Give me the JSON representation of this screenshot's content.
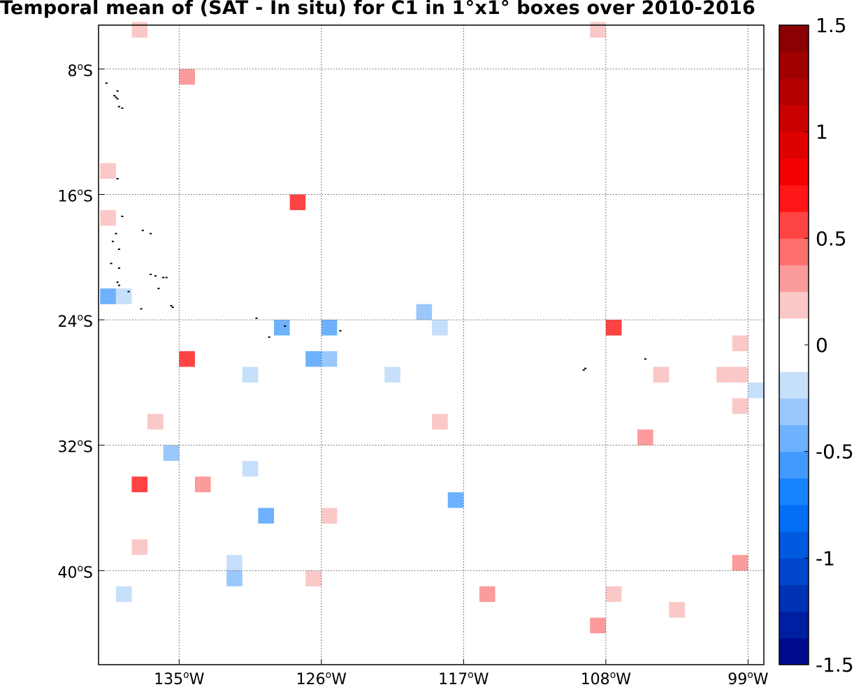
{
  "title": "Temporal mean of (SAT - In situ) for C1 in 1°x1° boxes over 2010-2016",
  "chart_data": {
    "type": "heatmap",
    "title": "Temporal mean of (SAT - In situ) for C1 in 1°x1° boxes over 2010-2016",
    "x_range_lon": [
      -140.1,
      -98.0
    ],
    "y_range_lat": [
      -5.2,
      -46.0
    ],
    "grid": true,
    "x_ticks": [
      {
        "lon": -135,
        "deg": "135",
        "hem": "W"
      },
      {
        "lon": -126,
        "deg": "126",
        "hem": "W"
      },
      {
        "lon": -117,
        "deg": "117",
        "hem": "W"
      },
      {
        "lon": -108,
        "deg": "108",
        "hem": "W"
      },
      {
        "lon": -99,
        "deg": "99",
        "hem": "W"
      }
    ],
    "y_ticks": [
      {
        "lat": -8,
        "deg": "8",
        "hem": "S"
      },
      {
        "lat": -16,
        "deg": "16",
        "hem": "S"
      },
      {
        "lat": -24,
        "deg": "24",
        "hem": "S"
      },
      {
        "lat": -32,
        "deg": "32",
        "hem": "S"
      },
      {
        "lat": -40,
        "deg": "40",
        "hem": "S"
      }
    ],
    "colorbar": {
      "range": [
        -1.5,
        1.5
      ],
      "levels": 24,
      "ticks": [
        "1.5",
        "1",
        "0.5",
        "0",
        "-0.5",
        "-1",
        "-1.5"
      ],
      "tick_values": [
        1.5,
        1,
        0.5,
        0,
        -0.5,
        -1,
        -1.5
      ]
    },
    "cells": [
      {
        "lon": -137.5,
        "lat": -5.5,
        "value": 0.15
      },
      {
        "lon": -108.5,
        "lat": -5.5,
        "value": 0.15
      },
      {
        "lon": -134.5,
        "lat": -8.5,
        "value": 0.3
      },
      {
        "lon": -129.5,
        "lat": -9.5,
        "value": -0.1
      },
      {
        "lon": -129.5,
        "lat": -13.5,
        "value": -0.1
      },
      {
        "lon": -139.5,
        "lat": -14.5,
        "value": 0.15
      },
      {
        "lon": -127.5,
        "lat": -16.5,
        "value": 0.5
      },
      {
        "lon": -129.5,
        "lat": -17.5,
        "value": -0.1
      },
      {
        "lon": -139.5,
        "lat": -17.5,
        "value": 0.15
      },
      {
        "lon": -130.5,
        "lat": -18.5,
        "value": -0.1
      },
      {
        "lon": -139.5,
        "lat": -22.5,
        "value": -0.4
      },
      {
        "lon": -138.5,
        "lat": -22.5,
        "value": -0.25
      },
      {
        "lon": -119.5,
        "lat": -23.5,
        "value": -0.3
      },
      {
        "lon": -128.5,
        "lat": -24.5,
        "value": -0.45
      },
      {
        "lon": -125.5,
        "lat": -24.5,
        "value": -0.45
      },
      {
        "lon": -118.5,
        "lat": -24.5,
        "value": -0.2
      },
      {
        "lon": -107.5,
        "lat": -24.5,
        "value": 0.55
      },
      {
        "lon": -128.5,
        "lat": -25.5,
        "value": -0.1
      },
      {
        "lon": -99.5,
        "lat": -25.5,
        "value": 0.15
      },
      {
        "lon": -134.5,
        "lat": -26.5,
        "value": 0.5
      },
      {
        "lon": -127.5,
        "lat": -26.5,
        "value": -0.1
      },
      {
        "lon": -126.5,
        "lat": -26.5,
        "value": -0.4
      },
      {
        "lon": -125.5,
        "lat": -26.5,
        "value": -0.3
      },
      {
        "lon": -123.5,
        "lat": -26.5,
        "value": -0.1
      },
      {
        "lon": -130.5,
        "lat": -27.5,
        "value": -0.25
      },
      {
        "lon": -126.5,
        "lat": -27.5,
        "value": -0.1
      },
      {
        "lon": -121.5,
        "lat": -27.5,
        "value": -0.15
      },
      {
        "lon": -104.5,
        "lat": -27.5,
        "value": 0.15
      },
      {
        "lon": -100.5,
        "lat": -27.5,
        "value": 0.15
      },
      {
        "lon": -99.5,
        "lat": -27.5,
        "value": 0.15
      },
      {
        "lon": -125.5,
        "lat": -28.5,
        "value": -0.1
      },
      {
        "lon": -122.5,
        "lat": -28.5,
        "value": -0.1
      },
      {
        "lon": -112.5,
        "lat": -28.5,
        "value": -0.1
      },
      {
        "lon": -98.5,
        "lat": -28.5,
        "value": -0.15
      },
      {
        "lon": -99.5,
        "lat": -29.5,
        "value": 0.15
      },
      {
        "lon": -136.5,
        "lat": -30.5,
        "value": 0.15
      },
      {
        "lon": -122.5,
        "lat": -30.5,
        "value": -0.1
      },
      {
        "lon": -118.5,
        "lat": -30.5,
        "value": 0.15
      },
      {
        "lon": -100.5,
        "lat": -30.5,
        "value": -0.1
      },
      {
        "lon": -105.5,
        "lat": -31.5,
        "value": 0.3
      },
      {
        "lon": -135.5,
        "lat": -32.5,
        "value": -0.3
      },
      {
        "lon": -130.5,
        "lat": -33.5,
        "value": -0.25
      },
      {
        "lon": -117.5,
        "lat": -33.5,
        "value": -0.1
      },
      {
        "lon": -137.5,
        "lat": -34.5,
        "value": 0.5
      },
      {
        "lon": -133.5,
        "lat": -34.5,
        "value": 0.3
      },
      {
        "lon": -117.5,
        "lat": -35.5,
        "value": -0.45
      },
      {
        "lon": -129.5,
        "lat": -36.5,
        "value": -0.4
      },
      {
        "lon": -125.5,
        "lat": -36.5,
        "value": 0.15
      },
      {
        "lon": -137.5,
        "lat": -38.5,
        "value": 0.15
      },
      {
        "lon": -131.5,
        "lat": -39.5,
        "value": -0.25
      },
      {
        "lon": -99.5,
        "lat": -39.5,
        "value": 0.3
      },
      {
        "lon": -131.5,
        "lat": -40.5,
        "value": -0.35
      },
      {
        "lon": -126.5,
        "lat": -40.5,
        "value": 0.15
      },
      {
        "lon": -138.5,
        "lat": -41.5,
        "value": -0.25
      },
      {
        "lon": -115.5,
        "lat": -41.5,
        "value": 0.3
      },
      {
        "lon": -107.5,
        "lat": -41.5,
        "value": 0.15
      },
      {
        "lon": -103.5,
        "lat": -42.5,
        "value": 0.15
      },
      {
        "lon": -108.5,
        "lat": -43.5,
        "value": 0.3
      }
    ]
  },
  "islands": [
    {
      "lon": -139.6,
      "lat": -8.9
    },
    {
      "lon": -139.1,
      "lat": -9.7
    },
    {
      "lon": -139.0,
      "lat": -9.8
    },
    {
      "lon": -138.9,
      "lat": -9.9
    },
    {
      "lon": -138.9,
      "lat": -9.4
    },
    {
      "lon": -138.8,
      "lat": -10.4
    },
    {
      "lon": -138.6,
      "lat": -10.5
    },
    {
      "lon": -138.9,
      "lat": -15.0
    },
    {
      "lon": -138.6,
      "lat": -17.4
    },
    {
      "lon": -137.3,
      "lat": -18.3
    },
    {
      "lon": -136.8,
      "lat": -18.5
    },
    {
      "lon": -139.0,
      "lat": -18.5
    },
    {
      "lon": -139.2,
      "lat": -19.0
    },
    {
      "lon": -138.8,
      "lat": -19.5
    },
    {
      "lon": -139.3,
      "lat": -20.4
    },
    {
      "lon": -138.8,
      "lat": -20.7
    },
    {
      "lon": -136.8,
      "lat": -21.1
    },
    {
      "lon": -136.5,
      "lat": -21.2
    },
    {
      "lon": -136.0,
      "lat": -21.3
    },
    {
      "lon": -135.8,
      "lat": -21.3
    },
    {
      "lon": -138.9,
      "lat": -21.6
    },
    {
      "lon": -138.8,
      "lat": -21.8
    },
    {
      "lon": -136.3,
      "lat": -22.0
    },
    {
      "lon": -138.2,
      "lat": -22.2
    },
    {
      "lon": -135.5,
      "lat": -23.1
    },
    {
      "lon": -135.4,
      "lat": -23.2
    },
    {
      "lon": -137.4,
      "lat": -23.3
    },
    {
      "lon": -130.1,
      "lat": -23.9
    },
    {
      "lon": -128.3,
      "lat": -24.4
    },
    {
      "lon": -124.8,
      "lat": -24.7
    },
    {
      "lon": -129.3,
      "lat": -25.1
    },
    {
      "lon": -109.3,
      "lat": -27.1
    },
    {
      "lon": -109.4,
      "lat": -27.2
    },
    {
      "lon": -105.5,
      "lat": -26.5
    }
  ]
}
